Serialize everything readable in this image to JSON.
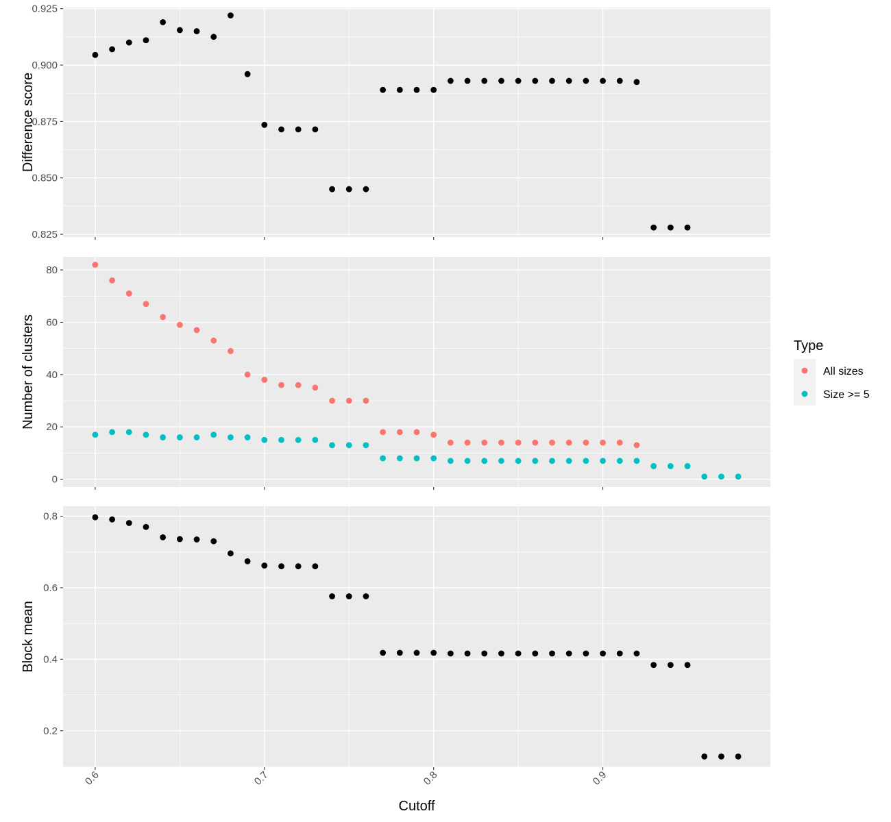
{
  "chart_data": {
    "type": "scatter",
    "x_label": "Cutoff",
    "x_ticks": [
      "0.6",
      "0.7",
      "0.8",
      "0.9"
    ],
    "x_tick_values": [
      0.6,
      0.7,
      0.8,
      0.9
    ],
    "x_range": [
      0.581,
      0.999
    ],
    "panels": [
      {
        "ylabel": "Difference score",
        "ylim": [
          0.8238,
          0.9255
        ],
        "y_ticks": [
          "0.825",
          "0.850",
          "0.875",
          "0.900",
          "0.925"
        ],
        "y_tick_values": [
          0.825,
          0.85,
          0.875,
          0.9,
          0.925
        ],
        "series": [
          {
            "color": "#000000",
            "points": [
              [
                0.6,
                0.9045
              ],
              [
                0.61,
                0.907
              ],
              [
                0.62,
                0.91
              ],
              [
                0.63,
                0.911
              ],
              [
                0.64,
                0.919
              ],
              [
                0.65,
                0.9155
              ],
              [
                0.66,
                0.915
              ],
              [
                0.67,
                0.9125
              ],
              [
                0.68,
                0.922
              ],
              [
                0.69,
                0.896
              ],
              [
                0.7,
                0.8735
              ],
              [
                0.71,
                0.8715
              ],
              [
                0.72,
                0.8715
              ],
              [
                0.73,
                0.8715
              ],
              [
                0.74,
                0.845
              ],
              [
                0.75,
                0.845
              ],
              [
                0.76,
                0.845
              ],
              [
                0.77,
                0.889
              ],
              [
                0.78,
                0.889
              ],
              [
                0.79,
                0.889
              ],
              [
                0.8,
                0.889
              ],
              [
                0.81,
                0.893
              ],
              [
                0.82,
                0.893
              ],
              [
                0.83,
                0.893
              ],
              [
                0.84,
                0.893
              ],
              [
                0.85,
                0.893
              ],
              [
                0.86,
                0.893
              ],
              [
                0.87,
                0.893
              ],
              [
                0.88,
                0.893
              ],
              [
                0.89,
                0.893
              ],
              [
                0.9,
                0.893
              ],
              [
                0.91,
                0.893
              ],
              [
                0.92,
                0.8925
              ],
              [
                0.93,
                0.828
              ],
              [
                0.94,
                0.828
              ],
              [
                0.95,
                0.828
              ]
            ]
          }
        ]
      },
      {
        "ylabel": "Number of clusters",
        "ylim": [
          -3,
          85
        ],
        "y_ticks": [
          "0",
          "20",
          "40",
          "60",
          "80"
        ],
        "y_tick_values": [
          0,
          20,
          40,
          60,
          80
        ],
        "series": [
          {
            "name": "All sizes",
            "color": "#F8766D",
            "points": [
              [
                0.6,
                82
              ],
              [
                0.61,
                76
              ],
              [
                0.62,
                71
              ],
              [
                0.63,
                67
              ],
              [
                0.64,
                62
              ],
              [
                0.65,
                59
              ],
              [
                0.66,
                57
              ],
              [
                0.67,
                53
              ],
              [
                0.68,
                49
              ],
              [
                0.69,
                40
              ],
              [
                0.7,
                38
              ],
              [
                0.71,
                36
              ],
              [
                0.72,
                36
              ],
              [
                0.73,
                35
              ],
              [
                0.74,
                30
              ],
              [
                0.75,
                30
              ],
              [
                0.76,
                30
              ],
              [
                0.77,
                18
              ],
              [
                0.78,
                18
              ],
              [
                0.79,
                18
              ],
              [
                0.8,
                17
              ],
              [
                0.81,
                14
              ],
              [
                0.82,
                14
              ],
              [
                0.83,
                14
              ],
              [
                0.84,
                14
              ],
              [
                0.85,
                14
              ],
              [
                0.86,
                14
              ],
              [
                0.87,
                14
              ],
              [
                0.88,
                14
              ],
              [
                0.89,
                14
              ],
              [
                0.9,
                14
              ],
              [
                0.91,
                14
              ],
              [
                0.92,
                13
              ]
            ]
          },
          {
            "name": "Size >= 5",
            "color": "#00BFC4",
            "points": [
              [
                0.6,
                17
              ],
              [
                0.61,
                18
              ],
              [
                0.62,
                18
              ],
              [
                0.63,
                17
              ],
              [
                0.64,
                16
              ],
              [
                0.65,
                16
              ],
              [
                0.66,
                16
              ],
              [
                0.67,
                17
              ],
              [
                0.68,
                16
              ],
              [
                0.69,
                16
              ],
              [
                0.7,
                15
              ],
              [
                0.71,
                15
              ],
              [
                0.72,
                15
              ],
              [
                0.73,
                15
              ],
              [
                0.74,
                13
              ],
              [
                0.75,
                13
              ],
              [
                0.76,
                13
              ],
              [
                0.77,
                8
              ],
              [
                0.78,
                8
              ],
              [
                0.79,
                8
              ],
              [
                0.8,
                8
              ],
              [
                0.81,
                7
              ],
              [
                0.82,
                7
              ],
              [
                0.83,
                7
              ],
              [
                0.84,
                7
              ],
              [
                0.85,
                7
              ],
              [
                0.86,
                7
              ],
              [
                0.87,
                7
              ],
              [
                0.88,
                7
              ],
              [
                0.89,
                7
              ],
              [
                0.9,
                7
              ],
              [
                0.91,
                7
              ],
              [
                0.92,
                7
              ],
              [
                0.93,
                5
              ],
              [
                0.94,
                5
              ],
              [
                0.95,
                5
              ],
              [
                0.96,
                1
              ],
              [
                0.97,
                1
              ],
              [
                0.98,
                1
              ]
            ]
          }
        ]
      },
      {
        "ylabel": "Block mean",
        "ylim": [
          0.098,
          0.828
        ],
        "y_ticks": [
          "0.2",
          "0.4",
          "0.6",
          "0.8"
        ],
        "y_tick_values": [
          0.2,
          0.4,
          0.6,
          0.8
        ],
        "series": [
          {
            "color": "#000000",
            "points": [
              [
                0.6,
                0.797
              ],
              [
                0.61,
                0.791
              ],
              [
                0.62,
                0.781
              ],
              [
                0.63,
                0.77
              ],
              [
                0.64,
                0.741
              ],
              [
                0.65,
                0.736
              ],
              [
                0.66,
                0.735
              ],
              [
                0.67,
                0.73
              ],
              [
                0.68,
                0.696
              ],
              [
                0.69,
                0.674
              ],
              [
                0.7,
                0.662
              ],
              [
                0.71,
                0.66
              ],
              [
                0.72,
                0.66
              ],
              [
                0.73,
                0.66
              ],
              [
                0.74,
                0.576
              ],
              [
                0.75,
                0.576
              ],
              [
                0.76,
                0.576
              ],
              [
                0.77,
                0.418
              ],
              [
                0.78,
                0.418
              ],
              [
                0.79,
                0.418
              ],
              [
                0.8,
                0.418
              ],
              [
                0.81,
                0.416
              ],
              [
                0.82,
                0.416
              ],
              [
                0.83,
                0.416
              ],
              [
                0.84,
                0.416
              ],
              [
                0.85,
                0.416
              ],
              [
                0.86,
                0.416
              ],
              [
                0.87,
                0.416
              ],
              [
                0.88,
                0.416
              ],
              [
                0.89,
                0.416
              ],
              [
                0.9,
                0.416
              ],
              [
                0.91,
                0.416
              ],
              [
                0.92,
                0.416
              ],
              [
                0.93,
                0.384
              ],
              [
                0.94,
                0.384
              ],
              [
                0.95,
                0.384
              ],
              [
                0.96,
                0.128
              ],
              [
                0.97,
                0.128
              ],
              [
                0.98,
                0.128
              ]
            ]
          }
        ]
      }
    ],
    "legend": {
      "title": "Type",
      "position": "right",
      "items": [
        {
          "label": "All sizes",
          "color": "#F8766D"
        },
        {
          "label": "Size >= 5",
          "color": "#00BFC4"
        }
      ]
    },
    "grid": true,
    "panel_background": "#EBEBEB"
  }
}
